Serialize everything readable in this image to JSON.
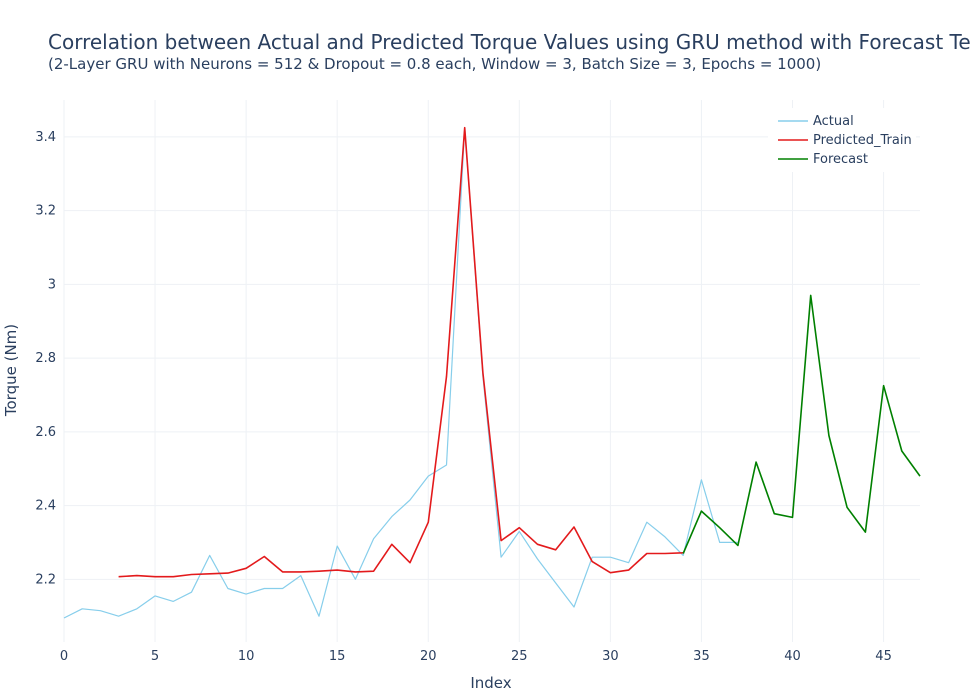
{
  "chart_data": {
    "type": "line",
    "title": "Correlation between Actual and Predicted Torque Values using GRU method with Forecast Te",
    "subtitle": "(2-Layer GRU with Neurons = 512 & Dropout = 0.8 each, Window = 3, Batch Size = 3, Epochs = 1000)",
    "xlabel": "Index",
    "ylabel": "Torque (Nm)",
    "xlim": [
      0,
      47
    ],
    "ylim": [
      2.03,
      3.5
    ],
    "xticks": [
      0,
      5,
      10,
      15,
      20,
      25,
      30,
      35,
      40,
      45
    ],
    "yticks": [
      2.2,
      2.4,
      2.6,
      2.8,
      3,
      3.2,
      3.4
    ],
    "grid": true,
    "legend_position": "top-right",
    "series": [
      {
        "name": "Actual",
        "color": "#87ceeb",
        "x": [
          0,
          1,
          2,
          3,
          4,
          5,
          6,
          7,
          8,
          9,
          10,
          11,
          12,
          13,
          14,
          15,
          16,
          17,
          18,
          19,
          20,
          21,
          22,
          23,
          24,
          25,
          26,
          27,
          28,
          29,
          30,
          31,
          32,
          33,
          34,
          35,
          36,
          37
        ],
        "y": [
          2.095,
          2.12,
          2.115,
          2.1,
          2.12,
          2.155,
          2.14,
          2.165,
          2.265,
          2.175,
          2.16,
          2.175,
          2.175,
          2.21,
          2.1,
          2.29,
          2.2,
          2.31,
          2.37,
          2.415,
          2.48,
          2.51,
          3.425,
          2.75,
          2.26,
          2.33,
          2.255,
          2.19,
          2.125,
          2.26,
          2.26,
          2.245,
          2.355,
          2.315,
          2.265,
          2.47,
          2.3,
          2.3
        ]
      },
      {
        "name": "Predicted_Train",
        "color": "#e31a1c",
        "x": [
          3,
          4,
          5,
          6,
          7,
          8,
          9,
          10,
          11,
          12,
          13,
          14,
          15,
          16,
          17,
          18,
          19,
          20,
          21,
          22,
          23,
          24,
          25,
          26,
          27,
          28,
          29,
          30,
          31,
          32,
          33,
          34
        ],
        "y": [
          2.207,
          2.21,
          2.207,
          2.207,
          2.213,
          2.215,
          2.217,
          2.23,
          2.262,
          2.22,
          2.22,
          2.222,
          2.225,
          2.22,
          2.222,
          2.295,
          2.245,
          2.355,
          2.75,
          3.425,
          2.76,
          2.305,
          2.34,
          2.295,
          2.28,
          2.342,
          2.248,
          2.218,
          2.225,
          2.27,
          2.27,
          2.272
        ]
      },
      {
        "name": "Forecast",
        "color": "#008000",
        "x": [
          34,
          35,
          36,
          37,
          38,
          39,
          40,
          41,
          42,
          43,
          44,
          45,
          46,
          47
        ],
        "y": [
          2.27,
          2.385,
          2.34,
          2.292,
          2.518,
          2.378,
          2.368,
          2.97,
          2.59,
          2.395,
          2.328,
          2.725,
          2.548,
          2.48
        ]
      }
    ]
  }
}
